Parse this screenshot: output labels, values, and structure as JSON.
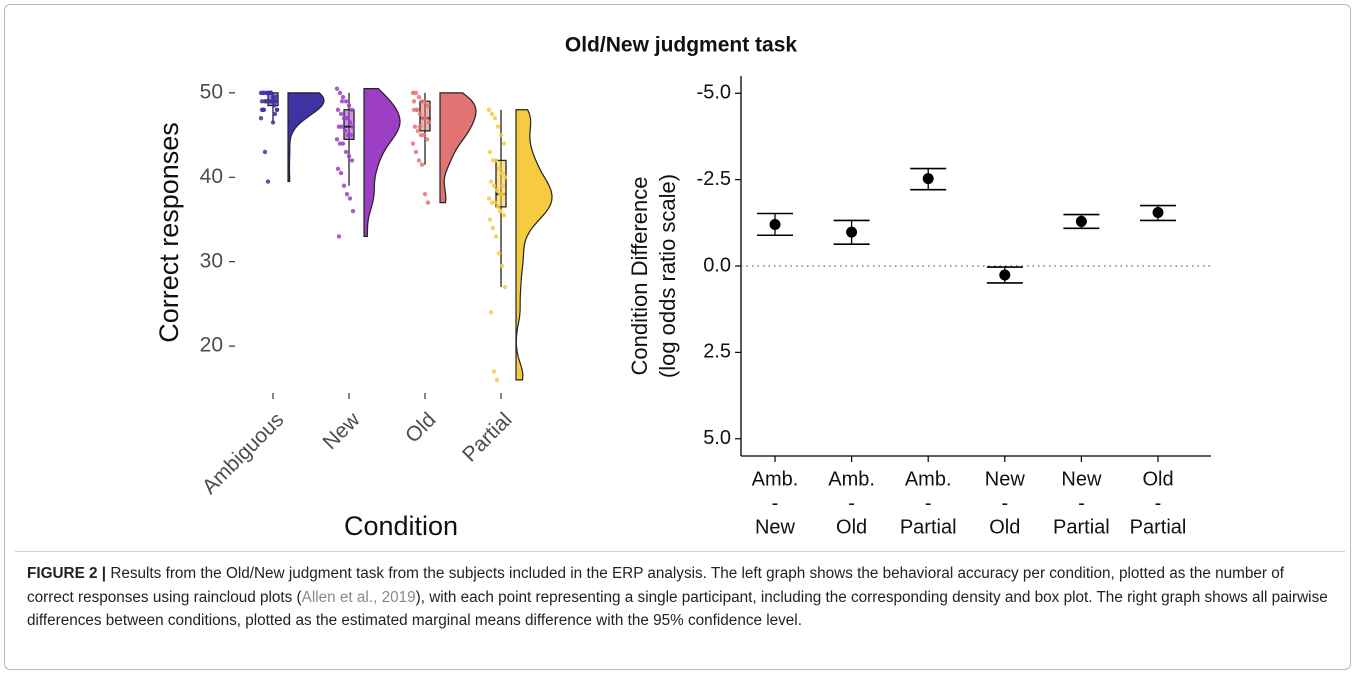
{
  "title": "Old/New judgment task",
  "chart_data": [
    {
      "type": "raincloud",
      "x_label": "Condition",
      "y_label": "Correct responses",
      "categories": [
        "Ambiguous",
        "New",
        "Old",
        "Partial"
      ],
      "colors": [
        "#3d33a3",
        "#9c3fc4",
        "#e27373",
        "#f6cb3f"
      ],
      "points": [
        [
          50,
          50,
          50,
          50,
          49.5,
          49,
          49,
          49,
          49,
          50,
          48.5,
          48,
          48,
          49,
          50,
          49,
          47.5,
          47,
          48,
          50,
          49,
          46.5,
          49.5,
          48,
          43,
          39.5,
          50,
          49,
          48,
          50
        ],
        [
          50.5,
          50,
          49.5,
          49,
          48.5,
          48,
          48,
          47.5,
          47,
          47,
          46.5,
          46,
          46,
          46,
          45.5,
          45,
          45,
          44.5,
          44,
          44,
          43,
          42.5,
          42,
          41,
          40.5,
          39,
          38,
          37.5,
          36,
          33,
          49,
          47
        ],
        [
          50,
          50,
          49.5,
          49,
          49,
          48.5,
          48,
          48,
          47.5,
          47,
          47,
          46.5,
          46,
          45.5,
          45,
          45,
          44.5,
          44,
          43,
          42,
          41.5,
          38,
          37,
          49,
          48,
          46
        ],
        [
          48,
          47.5,
          47,
          46,
          45,
          44,
          43,
          42,
          42,
          41,
          40.5,
          40,
          39.5,
          39,
          38.5,
          38,
          38,
          37.5,
          37,
          37,
          36.5,
          36,
          35.5,
          35,
          34,
          33,
          31,
          29.5,
          27,
          24,
          17,
          16,
          36,
          39
        ]
      ],
      "box": [
        {
          "min": 46.5,
          "q1": 48.5,
          "median": 49,
          "q3": 50,
          "max": 50
        },
        {
          "min": 39,
          "q1": 44.5,
          "median": 46,
          "q3": 48,
          "max": 50
        },
        {
          "min": 41.5,
          "q1": 45.5,
          "median": 47,
          "q3": 49,
          "max": 50
        },
        {
          "min": 27,
          "q1": 36.5,
          "median": 38,
          "q3": 42,
          "max": 48
        }
      ],
      "ylim": [
        13.5,
        52
      ],
      "yticks": [
        20,
        30,
        40,
        50
      ]
    },
    {
      "type": "errorbar",
      "y_label": [
        "Condition Difference",
        "(log odds ratio scale)"
      ],
      "categories": [
        [
          "Amb.",
          "-",
          "New"
        ],
        [
          "Amb.",
          "-",
          "Old"
        ],
        [
          "Amb.",
          "-",
          "Partial"
        ],
        [
          "New",
          "-",
          "Old"
        ],
        [
          "New",
          "-",
          "Partial"
        ],
        [
          "Old",
          "-",
          "Partial"
        ]
      ],
      "values": [
        -1.2,
        -0.98,
        -2.53,
        0.26,
        -1.29,
        -1.55
      ],
      "lower": [
        -1.52,
        -1.32,
        -2.82,
        0.03,
        -1.49,
        -1.75
      ],
      "upper": [
        -0.89,
        -0.63,
        -2.21,
        0.49,
        -1.09,
        -1.32
      ],
      "color": "#000000",
      "ylim": [
        -5.5,
        5.5
      ],
      "y_reversed": true,
      "yticks": [
        {
          "value": -5,
          "label": "-5.0"
        },
        {
          "value": -2.5,
          "label": "-2.5"
        },
        {
          "value": 0,
          "label": "0.0"
        },
        {
          "value": 2.5,
          "label": "2.5"
        },
        {
          "value": 5,
          "label": "5.0"
        }
      ],
      "reference_line": 0
    }
  ],
  "caption": {
    "label": "FIGURE 2 |",
    "text_before": " Results from the Old/New judgment task from the subjects included in the ERP analysis. The left graph shows the behavioral accuracy per condition, plotted as the number of correct responses using raincloud plots (",
    "citation": "Allen et al., 2019",
    "text_after": "), with each point representing a single participant, including the corresponding density and box plot. The right graph shows all pairwise differences between conditions, plotted as the estimated marginal means difference with the 95% confidence level."
  }
}
